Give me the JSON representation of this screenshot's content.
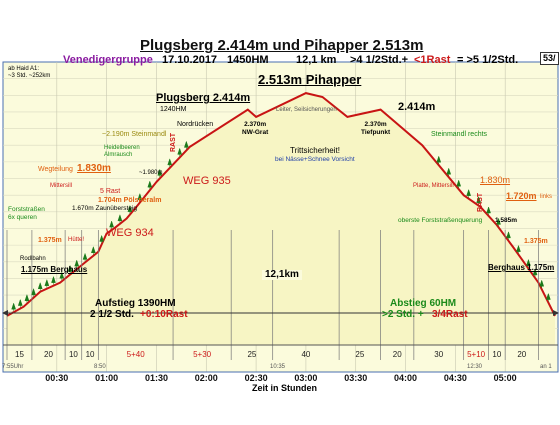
{
  "header": {
    "title": "Plugsberg 2.414m und Pihapper  2.513m",
    "group": "Venedigergruppe",
    "date": "17.10.2017",
    "elev_gain": "1450HM",
    "distance": "12,1  km",
    "time_part1": ">4 1/2Std.+",
    "time_part2": "<1Rast",
    "time_part3": "= >5 1/2Std.",
    "page": "53/"
  },
  "labels": {
    "start_info": "ab Haid A1:\n~3 Std. ~252km",
    "pihapper": "2.513m Pihapper",
    "plugsberg": "Plugsberg 2.414m",
    "plugsberg_hm": "1240HM",
    "peak2": "2.414m",
    "nordruecken": "Nordrücken",
    "nwgrat": "2.370m\nNW-Grat",
    "tiefpunkt": "2.370m\nTiefpunkt",
    "leiter": "Leiter, Seilsicherungen",
    "trittsicherheit": "Trittsicherheit!",
    "nasse": "bei Nässe+Schnee Vorsicht",
    "steinmandl_left": "~2.190m Steinmandl",
    "steinmandl_right": "Steinmandl rechts",
    "heidel": "Heidelbeeren\nAlmrausch",
    "m1980": "~1.980m",
    "weg935": "WEG 935",
    "weg934": "WEG 934",
    "rast": "RAST",
    "wegteilung": "Wegteilung",
    "m1830_left": "1.830m",
    "mittersill_left": "Mittersill",
    "rast5": "5 Rast",
    "poelsneralm": "1.704m Pölsneralm",
    "m1670": "1.670m Zaunübersteig",
    "forststr_left": "Forststraßen\n6x queren",
    "m1375_left": "1.375m",
    "huette": "Hütte!",
    "rodlbahn": "Rodlbahn",
    "berghaus_left": "1.175m Berghaus",
    "platte": "Platte, Mittersill",
    "m1830_right": "1.830m",
    "m1720": "1.720m",
    "links": "links",
    "forststr_right": "oberste Forststraßenquerung",
    "m1585": "1.585m",
    "m1375_right": "1.375m",
    "berghaus_right": "Berghaus 1.175m",
    "distance_mid": "12,1km",
    "aufstieg": "Aufstieg 1390HM",
    "aufstieg_time": "2 1/2 Std.",
    "aufstieg_rast": "+0:10Rast",
    "abstieg": "Abstieg 60HM",
    "abstieg_time": ">2 Std. +",
    "abstieg_rast": "3/4Rast",
    "xlabel": "Zeit in Stunden",
    "start_time": "7:55Uhr",
    "t1": "8:50",
    "t2": "10:35",
    "t3": "12:30",
    "t4": "an 1"
  },
  "chart_data": {
    "type": "area",
    "title": "Plugsberg 2.414m und Pihapper  2.513m",
    "xlabel": "Zeit in Stunden",
    "ylabel": "",
    "x_ticks": [
      "00:30",
      "01:00",
      "01:30",
      "02:00",
      "02:30",
      "03:00",
      "03:30",
      "04:00",
      "04:30",
      "05:00"
    ],
    "segment_minutes": [
      "15",
      "20",
      "10",
      "10",
      "5+40",
      "5+30",
      "25",
      "40",
      "25",
      "20",
      "30",
      "5+10",
      "10",
      "20"
    ],
    "ylim": [
      1000,
      2700
    ],
    "profile": [
      {
        "t": 0,
        "elev": 1175
      },
      {
        "t": 10,
        "elev": 1230
      },
      {
        "t": 20,
        "elev": 1320
      },
      {
        "t": 32,
        "elev": 1375
      },
      {
        "t": 45,
        "elev": 1480
      },
      {
        "t": 55,
        "elev": 1560
      },
      {
        "t": 60,
        "elev": 1670
      },
      {
        "t": 65,
        "elev": 1704
      },
      {
        "t": 72,
        "elev": 1760
      },
      {
        "t": 78,
        "elev": 1830
      },
      {
        "t": 90,
        "elev": 1980
      },
      {
        "t": 110,
        "elev": 2190
      },
      {
        "t": 145,
        "elev": 2414
      },
      {
        "t": 150,
        "elev": 2370
      },
      {
        "t": 180,
        "elev": 2513
      },
      {
        "t": 190,
        "elev": 2490
      },
      {
        "t": 205,
        "elev": 2370
      },
      {
        "t": 225,
        "elev": 2414
      },
      {
        "t": 250,
        "elev": 2200
      },
      {
        "t": 275,
        "elev": 1900
      },
      {
        "t": 285,
        "elev": 1830
      },
      {
        "t": 295,
        "elev": 1720
      },
      {
        "t": 305,
        "elev": 1585
      },
      {
        "t": 320,
        "elev": 1375
      },
      {
        "t": 330,
        "elev": 1175
      }
    ]
  }
}
